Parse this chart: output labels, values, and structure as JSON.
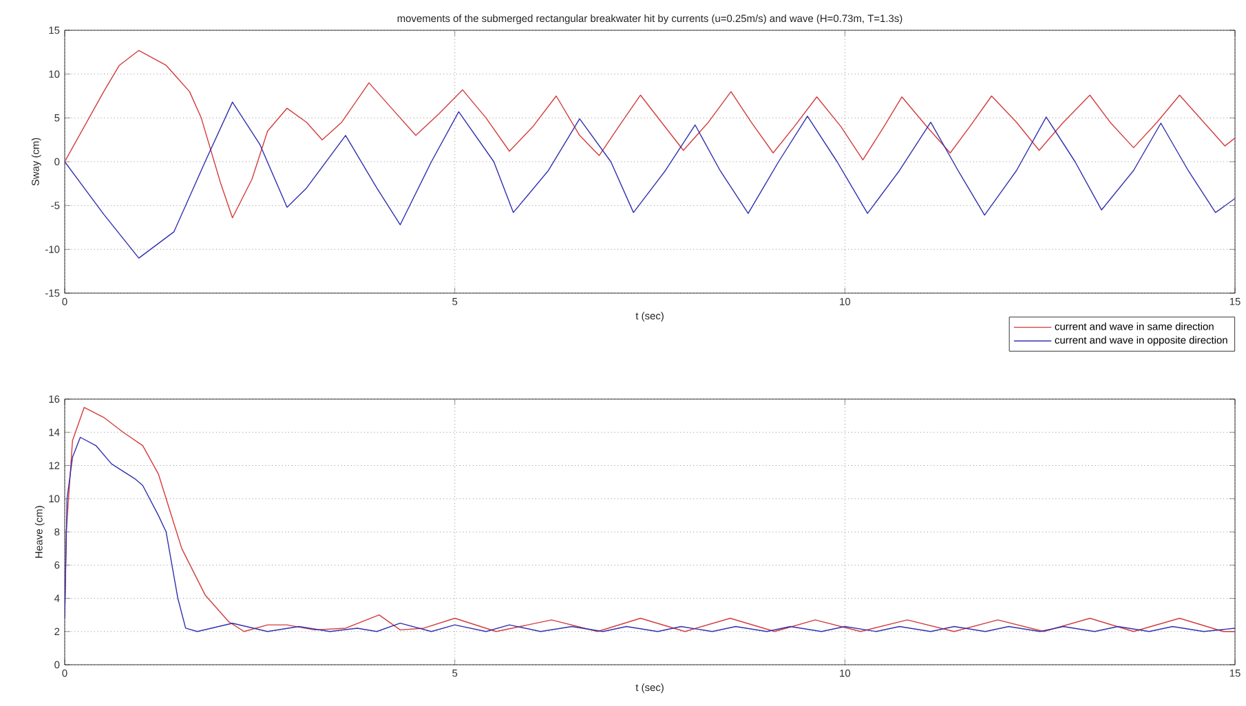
{
  "chart_data": [
    {
      "type": "line",
      "title": "movements of the submerged rectangular breakwater hit by currents (u=0.25m/s) and wave (H=0.73m, T=1.3s)",
      "xlabel": "t (sec)",
      "ylabel": "Sway (cm)",
      "xlim": [
        0,
        15
      ],
      "ylim": [
        -15,
        15
      ],
      "xticks": [
        0,
        5,
        10,
        15
      ],
      "yticks": [
        -15,
        -10,
        -5,
        0,
        5,
        10,
        15
      ],
      "grid": true,
      "legend": "bottom right",
      "line_style": "solid",
      "series": [
        {
          "name": "current and wave in same direction",
          "color": "#d23b3b",
          "x": [
            0,
            0.5,
            0.7,
            0.95,
            1.3,
            1.6,
            1.75,
            2.0,
            2.15,
            2.4,
            2.6,
            2.85,
            3.1,
            3.3,
            3.55,
            3.9,
            4.2,
            4.5,
            4.8,
            5.1,
            5.4,
            5.7,
            6.0,
            6.3,
            6.6,
            6.85,
            7.1,
            7.38,
            7.65,
            7.93,
            8.25,
            8.54,
            8.8,
            9.08,
            9.35,
            9.64,
            9.95,
            10.23,
            10.5,
            10.73,
            11.05,
            11.35,
            11.6,
            11.88,
            12.2,
            12.49,
            12.8,
            13.14,
            13.4,
            13.7,
            14.0,
            14.29,
            14.6,
            14.87,
            15
          ],
          "values": [
            0,
            8,
            11,
            12.7,
            11,
            8,
            5,
            -2.5,
            -6.4,
            -2,
            3.5,
            6.1,
            4.5,
            2.5,
            4.5,
            9,
            6,
            3,
            5.5,
            8.2,
            5,
            1.2,
            4,
            7.5,
            3,
            0.7,
            4,
            7.6,
            4.5,
            1.3,
            4.5,
            8,
            4.5,
            1,
            4,
            7.4,
            4,
            0.2,
            4,
            7.4,
            4,
            1,
            4,
            7.5,
            4.5,
            1.3,
            4.5,
            7.6,
            4.5,
            1.6,
            4.5,
            7.6,
            4.5,
            1.8,
            2.7
          ]
        },
        {
          "name": "current and wave in opposite direction",
          "color": "#2f2fae",
          "x": [
            0,
            0.5,
            0.95,
            1.4,
            1.8,
            2.15,
            2.5,
            2.85,
            3.1,
            3.6,
            4.0,
            4.3,
            4.7,
            5.05,
            5.5,
            5.75,
            6.2,
            6.6,
            7.0,
            7.29,
            7.7,
            8.08,
            8.4,
            8.76,
            9.15,
            9.52,
            9.9,
            10.29,
            10.7,
            11.1,
            11.45,
            11.79,
            12.2,
            12.58,
            12.95,
            13.29,
            13.7,
            14.05,
            14.4,
            14.75,
            15
          ],
          "values": [
            0,
            -6,
            -11,
            -8,
            0,
            6.8,
            2,
            -5.2,
            -3,
            3,
            -3,
            -7.2,
            0,
            5.7,
            0,
            -5.8,
            -1,
            4.9,
            0,
            -5.8,
            -1,
            4.2,
            -1,
            -5.9,
            0,
            5.2,
            0,
            -5.9,
            -1,
            4.5,
            -1,
            -6.1,
            -1,
            5.1,
            0,
            -5.5,
            -1,
            4.4,
            -1,
            -5.8,
            -4.2
          ]
        }
      ]
    },
    {
      "type": "line",
      "xlabel": "t (sec)",
      "ylabel": "Heave (cm)",
      "xlim": [
        0,
        15
      ],
      "ylim": [
        0,
        16
      ],
      "xticks": [
        0,
        5,
        10,
        15
      ],
      "yticks": [
        0,
        2,
        4,
        6,
        8,
        10,
        12,
        14,
        16
      ],
      "grid": true,
      "line_style": "solid",
      "series": [
        {
          "color": "#d23b3b",
          "x": [
            0,
            0.02,
            0.1,
            0.25,
            0.5,
            0.75,
            1.0,
            1.2,
            1.5,
            1.8,
            2.1,
            2.3,
            2.6,
            2.85,
            3.2,
            3.6,
            4.03,
            4.3,
            4.6,
            5.0,
            5.53,
            6.24,
            6.83,
            7.38,
            7.95,
            8.53,
            9.1,
            9.62,
            10.2,
            10.8,
            11.4,
            11.96,
            12.55,
            13.14,
            13.7,
            14.29,
            14.85,
            15
          ],
          "values": [
            2.8,
            8,
            13.5,
            15.5,
            14.9,
            14,
            13.2,
            11.5,
            7,
            4.2,
            2.6,
            2,
            2.4,
            2.4,
            2.1,
            2.2,
            3,
            2.1,
            2.2,
            2.8,
            2,
            2.7,
            2,
            2.8,
            2,
            2.8,
            2,
            2.7,
            2,
            2.7,
            2,
            2.7,
            2,
            2.8,
            2,
            2.8,
            2,
            2
          ]
        },
        {
          "color": "#2f2fae",
          "x": [
            0,
            0.03,
            0.1,
            0.2,
            0.4,
            0.6,
            0.9,
            1.0,
            1.2,
            1.3,
            1.45,
            1.55,
            1.7,
            2.15,
            2.6,
            3.0,
            3.4,
            3.75,
            4.0,
            4.3,
            4.7,
            5.0,
            5.4,
            5.7,
            6.1,
            6.5,
            6.9,
            7.2,
            7.6,
            7.9,
            8.3,
            8.6,
            9.0,
            9.3,
            9.7,
            10.0,
            10.4,
            10.7,
            11.1,
            11.4,
            11.8,
            12.1,
            12.5,
            12.8,
            13.2,
            13.5,
            13.9,
            14.2,
            14.6,
            15
          ],
          "values": [
            2.8,
            10,
            12.5,
            13.7,
            13.2,
            12.1,
            11.2,
            10.8,
            9,
            8,
            4,
            2.2,
            2,
            2.5,
            2,
            2.3,
            2,
            2.2,
            2,
            2.5,
            2,
            2.4,
            2,
            2.4,
            2,
            2.3,
            2,
            2.3,
            2,
            2.3,
            2,
            2.3,
            2,
            2.3,
            2,
            2.3,
            2,
            2.3,
            2,
            2.3,
            2,
            2.3,
            2,
            2.3,
            2,
            2.3,
            2,
            2.3,
            2,
            2.2
          ]
        }
      ]
    }
  ]
}
